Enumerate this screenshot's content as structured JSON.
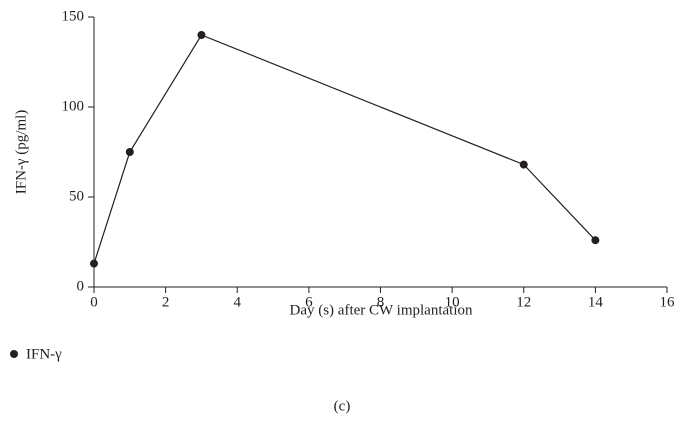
{
  "chart_data": {
    "type": "line",
    "x_label": "Day (s) after CW implantation",
    "y_label": "IFN-γ (pg/ml)",
    "caption": "(c)",
    "x": [
      0,
      1,
      3,
      12,
      14
    ],
    "series": [
      {
        "name": "IFN-γ",
        "color": "#231f20",
        "values": [
          13,
          75,
          140,
          68,
          26
        ]
      }
    ],
    "xlim": [
      0,
      16
    ],
    "xticks": [
      0,
      2,
      4,
      6,
      8,
      10,
      12,
      14,
      16
    ],
    "ylim": [
      0,
      150
    ],
    "yticks": [
      0,
      50,
      100,
      150
    ],
    "grid": false,
    "legend": "bottom-left"
  }
}
